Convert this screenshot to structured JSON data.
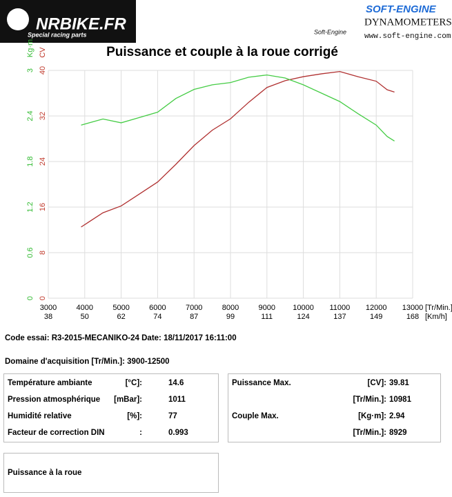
{
  "header": {
    "brand": "NRBIKE.FR",
    "tagline": "Special racing parts",
    "maker": "SOFT-ENGINE",
    "maker_sub": "Soft-Engine",
    "product": "DYNAMOMETERS",
    "url": "www.soft-engine.com"
  },
  "chart_data": {
    "type": "line",
    "title": "Puissance et couple à la roue corrigé",
    "x": [
      3900,
      4500,
      5000,
      5500,
      6000,
      6500,
      7000,
      7500,
      8000,
      8500,
      9000,
      9500,
      10000,
      10500,
      11000,
      11500,
      12000,
      12300,
      12500
    ],
    "xlim": [
      3000,
      13000
    ],
    "xticks": [
      3000,
      4000,
      5000,
      6000,
      7000,
      8000,
      9000,
      10000,
      11000,
      12000,
      13000
    ],
    "xticks_speed": [
      {
        "value": 3000,
        "label": "38"
      },
      {
        "value": 4000,
        "label": "50"
      },
      {
        "value": 5000,
        "label": "62"
      },
      {
        "value": 6000,
        "label": "74"
      },
      {
        "value": 7000,
        "label": "87"
      },
      {
        "value": 8000,
        "label": "99"
      },
      {
        "value": 9000,
        "label": "111"
      },
      {
        "value": 10000,
        "label": "124"
      },
      {
        "value": 11000,
        "label": "137"
      },
      {
        "value": 12000,
        "label": "149"
      },
      {
        "value": 13000,
        "label": "168"
      }
    ],
    "x_label": "[Tr/Min.]",
    "x_speed_label": "[Km/h]",
    "ylim": [
      0,
      40
    ],
    "yticks": [
      0,
      8,
      16,
      24,
      32,
      40
    ],
    "y_label": "CV",
    "y_color": "#c0392b",
    "y2lim": [
      0,
      3
    ],
    "y2ticks": [
      0,
      0.6,
      1.2,
      1.8,
      2.4,
      3
    ],
    "y2_label": "Kg·m",
    "y2_color": "#33bb33",
    "grid": true,
    "series": [
      {
        "name": "CV",
        "color": "#b03030",
        "values": [
          12.5,
          15.0,
          16.2,
          18.3,
          20.4,
          23.5,
          26.8,
          29.5,
          31.5,
          34.4,
          37.0,
          38.2,
          38.9,
          39.4,
          39.8,
          38.9,
          38.1,
          36.6,
          36.2
        ]
      },
      {
        "name": "Kg·m",
        "color": "#44cc44",
        "axis": "y2",
        "values": [
          2.28,
          2.36,
          2.31,
          2.38,
          2.45,
          2.63,
          2.75,
          2.81,
          2.84,
          2.91,
          2.94,
          2.9,
          2.81,
          2.7,
          2.59,
          2.43,
          2.28,
          2.13,
          2.07
        ]
      }
    ]
  },
  "report": {
    "test_code": "Code essai: R3-2015-MECANIKO-24  Date: 18/11/2017 16:11:00",
    "domain": "Domaine d'acquisition [Tr/Min.]: 3900-12500",
    "conditions": [
      [
        "Température ambiante",
        "[°C]:",
        "14.6"
      ],
      [
        "Pression atmosphérique",
        "[mBar]:",
        "1011"
      ],
      [
        "Humidité relative",
        "[%]:",
        "77"
      ],
      [
        "Facteur de correction DIN",
        ":",
        "0.993"
      ]
    ],
    "results": [
      [
        "Puissance Max.",
        "[CV]:",
        "39.81"
      ],
      [
        null,
        "[Tr/Min.]:",
        "10981"
      ],
      [
        "Couple Max.",
        "[Kg·m]:",
        "2.94"
      ],
      [
        null,
        "[Tr/Min.]:",
        "8929"
      ]
    ],
    "footer_box": "Puissance à la roue"
  }
}
